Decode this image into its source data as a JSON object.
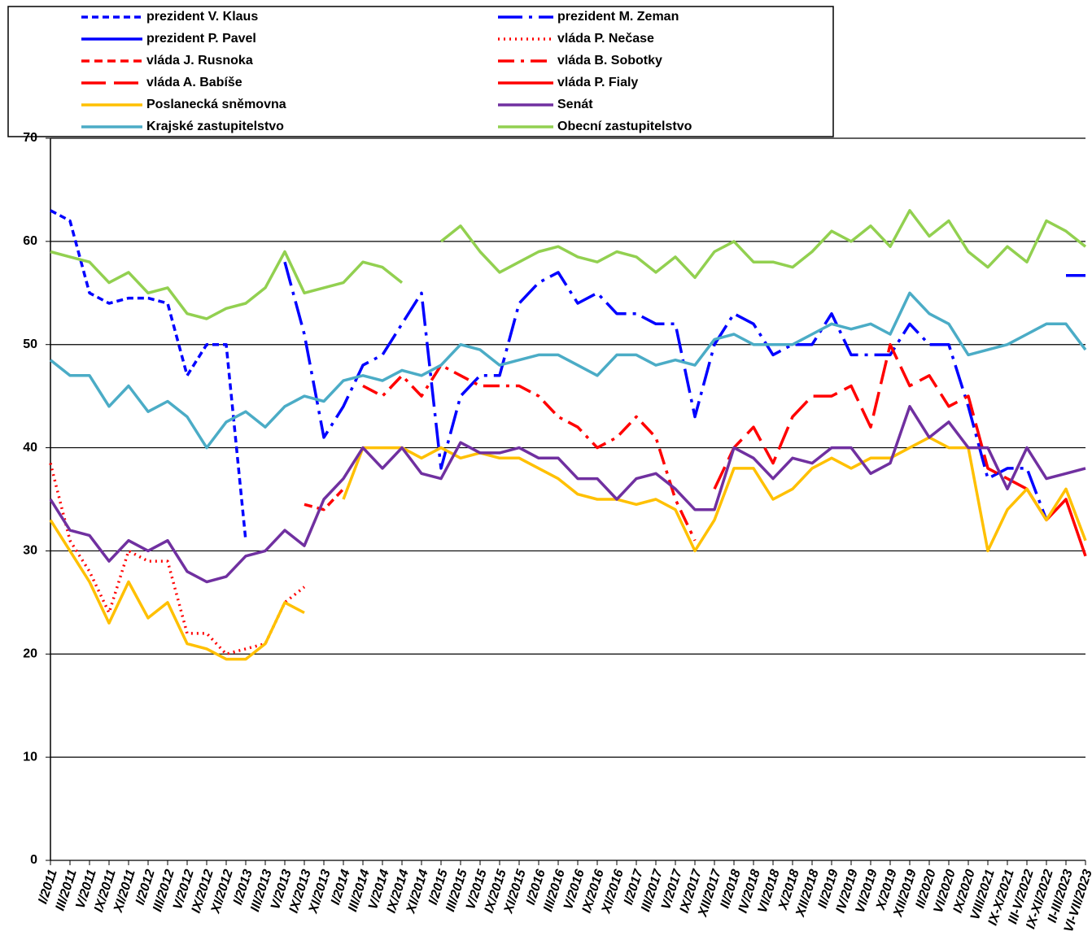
{
  "chart_data": {
    "type": "line",
    "categories": [
      "I/2011",
      "III/2011",
      "V/2011",
      "IX/2011",
      "XI/2011",
      "I/2012",
      "III/2012",
      "V/2012",
      "IX/2012",
      "XI/2012",
      "I/2013",
      "III/2013",
      "V/2013",
      "IX/2013",
      "XI/2013",
      "I/2014",
      "III/2014",
      "V/2014",
      "IX/2014",
      "XI/2014",
      "I/2015",
      "III/2015",
      "V/2015",
      "IX/2015",
      "XI/2015",
      "I/2016",
      "III/2016",
      "V/2016",
      "IX/2016",
      "XI/2016",
      "I/2017",
      "III/2017",
      "V/2017",
      "IX/2017",
      "XII/2017",
      "II/2018",
      "IV/2018",
      "VI/2018",
      "X/2018",
      "XII/2018",
      "II/2019",
      "IV/2019",
      "VI/2019",
      "X/2019",
      "XII/2019",
      "II/2020",
      "VI/2020",
      "IX/2020",
      "VIII/2021",
      "IX-X/2021",
      "III-V/2022",
      "IX-XI/2022",
      "II-III/2023",
      "VI-VII/2023"
    ],
    "ylim": [
      0,
      70
    ],
    "yticks": [
      0,
      10,
      20,
      30,
      40,
      50,
      60,
      70
    ],
    "grid": true,
    "series": [
      {
        "name": "prezident V. Klaus",
        "color": "#0000ff",
        "dash": "8,5",
        "values": [
          63,
          62,
          55,
          54,
          54.5,
          54.5,
          54,
          47,
          50,
          50,
          31,
          null,
          null,
          null,
          null,
          null,
          null,
          null,
          null,
          null,
          null,
          null,
          null,
          null,
          null,
          null,
          null,
          null,
          null,
          null,
          null,
          null,
          null,
          null,
          null,
          null,
          null,
          null,
          null,
          null,
          null,
          null,
          null,
          null,
          null,
          null,
          null,
          null,
          null,
          null,
          null,
          null,
          null,
          null
        ]
      },
      {
        "name": "prezident M. Zeman",
        "color": "#0000ff",
        "dash": "30,8,4,8",
        "values": [
          null,
          null,
          null,
          null,
          null,
          null,
          null,
          null,
          null,
          null,
          null,
          null,
          58,
          51,
          41,
          44,
          48,
          49,
          52,
          55,
          38,
          45,
          47,
          47,
          54,
          56,
          57,
          54,
          55,
          53,
          53,
          52,
          52,
          43,
          50,
          53,
          52,
          49,
          50,
          50,
          53,
          49,
          49,
          49,
          52,
          50,
          50,
          44,
          37,
          38,
          38,
          33,
          null,
          null
        ]
      },
      {
        "name": "prezident P. Pavel",
        "color": "#0000ff",
        "dash": "none",
        "values": [
          null,
          null,
          null,
          null,
          null,
          null,
          null,
          null,
          null,
          null,
          null,
          null,
          null,
          null,
          null,
          null,
          null,
          null,
          null,
          null,
          null,
          null,
          null,
          null,
          null,
          null,
          null,
          null,
          null,
          null,
          null,
          null,
          null,
          null,
          null,
          null,
          null,
          null,
          null,
          null,
          null,
          null,
          null,
          null,
          null,
          null,
          null,
          null,
          null,
          null,
          null,
          null,
          56.7,
          56.7
        ]
      },
      {
        "name": "vláda P. Nečase",
        "color": "#ff0000",
        "dash": "2,5",
        "values": [
          38.5,
          31,
          28,
          24,
          30,
          29,
          29,
          22,
          22,
          20,
          20.5,
          21,
          25,
          26.5,
          null,
          null,
          null,
          null,
          null,
          null,
          null,
          null,
          null,
          null,
          null,
          null,
          null,
          null,
          null,
          null,
          null,
          null,
          null,
          null,
          null,
          null,
          null,
          null,
          null,
          null,
          null,
          null,
          null,
          null,
          null,
          null,
          null,
          null,
          null,
          null,
          null,
          null,
          null,
          null
        ]
      },
      {
        "name": "vláda J. Rusnoka",
        "color": "#ff0000",
        "dash": "10,6",
        "values": [
          null,
          null,
          null,
          null,
          null,
          null,
          null,
          null,
          null,
          null,
          null,
          null,
          null,
          34.5,
          34,
          36,
          null,
          null,
          null,
          null,
          null,
          null,
          null,
          null,
          null,
          null,
          null,
          null,
          null,
          null,
          null,
          null,
          null,
          null,
          null,
          null,
          null,
          null,
          null,
          null,
          null,
          null,
          null,
          null,
          null,
          null,
          null,
          null,
          null,
          null,
          null,
          null,
          null,
          null
        ]
      },
      {
        "name": "vláda B. Sobotky",
        "color": "#ff0000",
        "dash": "20,8,4,8",
        "values": [
          null,
          null,
          null,
          null,
          null,
          null,
          null,
          null,
          null,
          null,
          null,
          null,
          null,
          null,
          null,
          null,
          46,
          45,
          47,
          45,
          48,
          47,
          46,
          46,
          46,
          45,
          43,
          42,
          40,
          41,
          43,
          41,
          35,
          31,
          null,
          null,
          null,
          null,
          null,
          null,
          null,
          null,
          null,
          null,
          null,
          null,
          null,
          null,
          null,
          null,
          null,
          null,
          null,
          null
        ]
      },
      {
        "name": "vláda A. Babíše",
        "color": "#ff0000",
        "dash": "30,10",
        "values": [
          null,
          null,
          null,
          null,
          null,
          null,
          null,
          null,
          null,
          null,
          null,
          null,
          null,
          null,
          null,
          null,
          null,
          null,
          null,
          null,
          null,
          null,
          null,
          null,
          null,
          null,
          null,
          null,
          null,
          null,
          null,
          null,
          null,
          null,
          36,
          40,
          42,
          38.5,
          43,
          45,
          45,
          46,
          42,
          50,
          46,
          47,
          44,
          45,
          38,
          37,
          null,
          null,
          null,
          null
        ]
      },
      {
        "name": "vláda P. Fialy",
        "color": "#ff0000",
        "dash": "none",
        "values": [
          null,
          null,
          null,
          null,
          null,
          null,
          null,
          null,
          null,
          null,
          null,
          null,
          null,
          null,
          null,
          null,
          null,
          null,
          null,
          null,
          null,
          null,
          null,
          null,
          null,
          null,
          null,
          null,
          null,
          null,
          null,
          null,
          null,
          null,
          null,
          null,
          null,
          null,
          null,
          null,
          null,
          null,
          null,
          null,
          null,
          null,
          null,
          null,
          null,
          37,
          36,
          33,
          35,
          29.5
        ]
      },
      {
        "name": "Poslanecká sněmovna",
        "color": "#ffc000",
        "dash": "none",
        "values": [
          33,
          30,
          27,
          23,
          27,
          23.5,
          25,
          21,
          20.5,
          19.5,
          19.5,
          21,
          25,
          24,
          null,
          35,
          40,
          40,
          40,
          39,
          40,
          39,
          39.5,
          39,
          39,
          38,
          37,
          35.5,
          35,
          35,
          34.5,
          35,
          34,
          30,
          33,
          38,
          38,
          35,
          36,
          38,
          39,
          38,
          39,
          39,
          40,
          41,
          40,
          40,
          30,
          34,
          36,
          33,
          36,
          31
        ]
      },
      {
        "name": "Senát",
        "color": "#7030a0",
        "dash": "none",
        "values": [
          35,
          32,
          31.5,
          29,
          31,
          30,
          31,
          28,
          27,
          27.5,
          29.5,
          30,
          32,
          30.5,
          35,
          37,
          40,
          38,
          40,
          37.5,
          37,
          40.5,
          39.5,
          39.5,
          40,
          39,
          39,
          37,
          37,
          35,
          37,
          37.5,
          36,
          34,
          34,
          40,
          39,
          37,
          39,
          38.5,
          40,
          40,
          37.5,
          38.5,
          44,
          41,
          42.5,
          40,
          40,
          36,
          40,
          37,
          37.5,
          38
        ]
      },
      {
        "name": "Krajské zastupitelstvo",
        "color": "#4bacc6",
        "dash": "none",
        "values": [
          48.5,
          47,
          47,
          44,
          46,
          43.5,
          44.5,
          43,
          40,
          42.5,
          43.5,
          42,
          44,
          45,
          44.5,
          46.5,
          47,
          46.5,
          47.5,
          47,
          48,
          50,
          49.5,
          48,
          48.5,
          49,
          49,
          48,
          47,
          49,
          49,
          48,
          48.5,
          48,
          50.5,
          51,
          50,
          50,
          50,
          51,
          52,
          51.5,
          52,
          51,
          55,
          53,
          52,
          49,
          49.5,
          50,
          51,
          52,
          52,
          49.5
        ]
      },
      {
        "name": "Obecní zastupitelstvo",
        "color": "#92d050",
        "dash": "none",
        "values": [
          59,
          58.5,
          58,
          56,
          57,
          55,
          55.5,
          53,
          52.5,
          53.5,
          54,
          55.5,
          59,
          55,
          55.5,
          56,
          58,
          57.5,
          56,
          null,
          60,
          61.5,
          59,
          57,
          58,
          59,
          59.5,
          58.5,
          58,
          59,
          58.5,
          57,
          58.5,
          56.5,
          59,
          60,
          58,
          58,
          57.5,
          59,
          61,
          60,
          61.5,
          59.5,
          63,
          60.5,
          62,
          59,
          57.5,
          59.5,
          58,
          62,
          61,
          59.5
        ]
      }
    ]
  }
}
